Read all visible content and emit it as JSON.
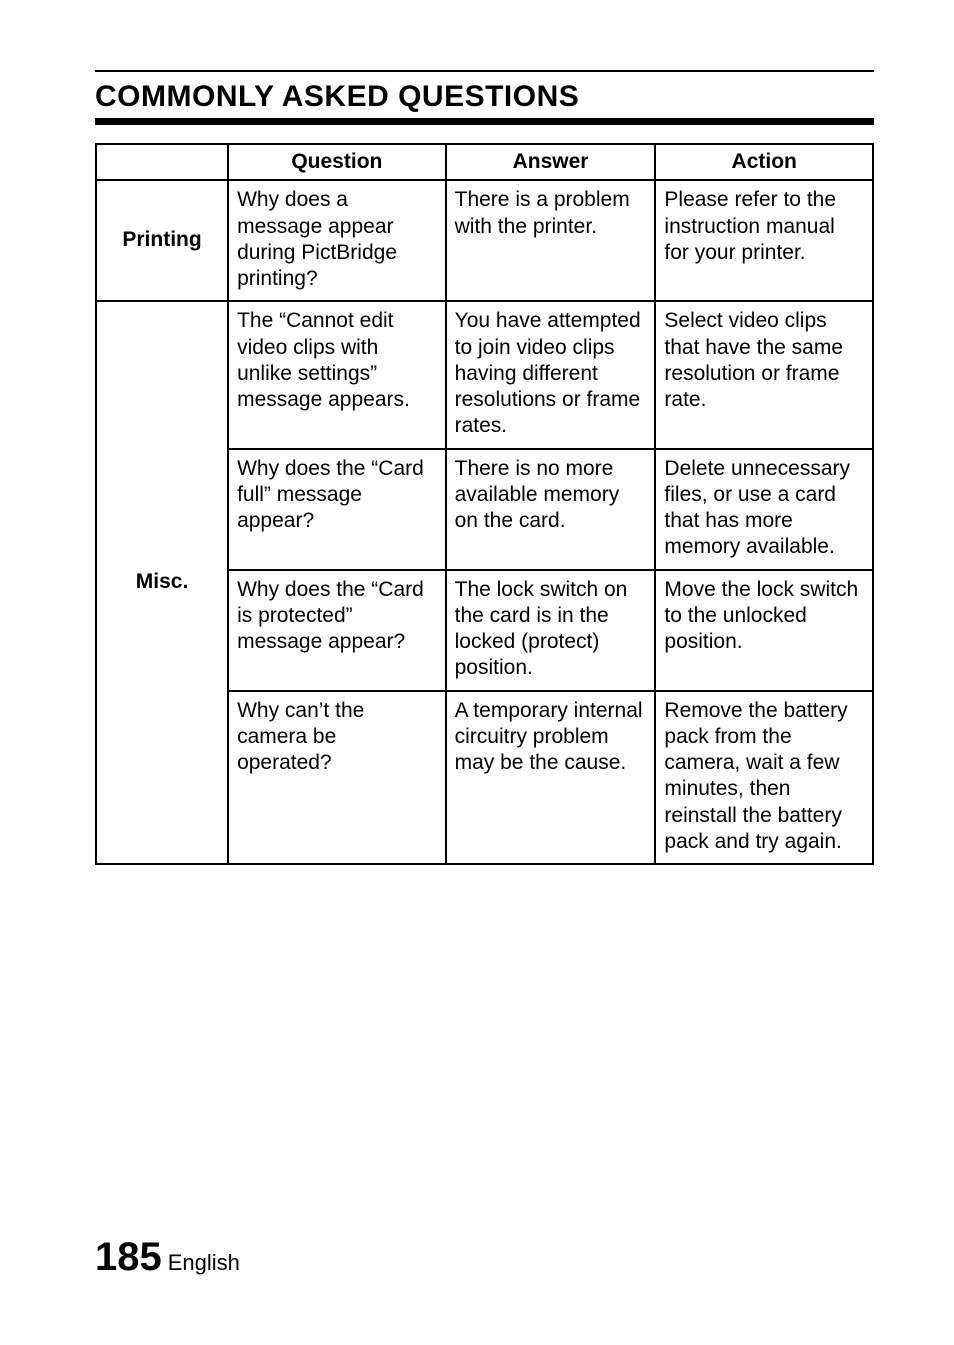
{
  "title": "COMMONLY ASKED QUESTIONS",
  "headers": {
    "blank": "",
    "question": "Question",
    "answer": "Answer",
    "action": "Action"
  },
  "printing": {
    "label": "Printing",
    "row": {
      "q": "Why does a message appear during PictBridge printing?",
      "a": "There is a problem with the printer.",
      "act": "Please refer to the instruction manual for your printer."
    }
  },
  "misc": {
    "label": "Misc.",
    "rows": [
      {
        "q": "The “Cannot edit video clips with unlike settings” message appears.",
        "a": "You have attempted to join video clips having different resolutions or frame rates.",
        "act": "Select video clips that have the same resolution or frame rate."
      },
      {
        "q": "Why does the “Card full” message appear?",
        "a": "There is no more available memory on the card.",
        "act": "Delete unnecessary files, or use a card that has more memory available."
      },
      {
        "q": "Why does the “Card is protected” message appear?",
        "a": "The lock switch on the card is in the locked (protect) position.",
        "act": "Move the lock switch to the unlocked position."
      },
      {
        "q": "Why can’t the camera be operated?",
        "a": "A temporary internal circuitry problem may be the cause.",
        "act": "Remove the battery pack from the camera, wait a few minutes, then reinstall the battery pack and try again."
      }
    ]
  },
  "footer": {
    "page": "185",
    "lang": "English"
  }
}
